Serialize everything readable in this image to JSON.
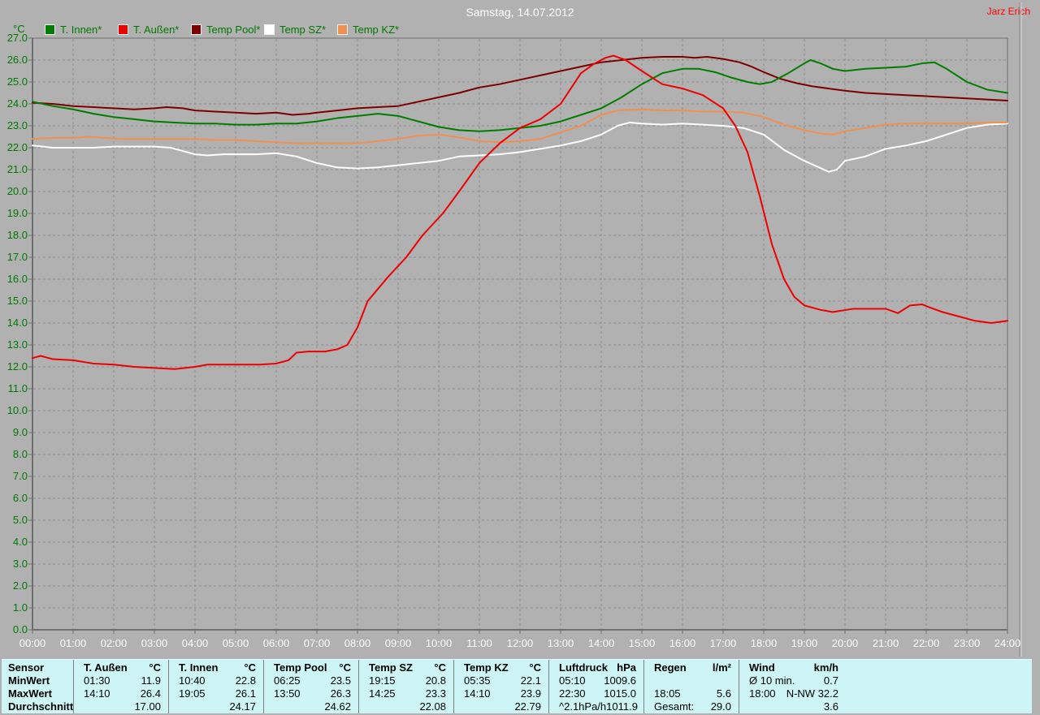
{
  "window": {
    "author": "Jarz Erich"
  },
  "chart_data": {
    "type": "line",
    "title": "Samstag, 14.07.2012",
    "y_unit": "°C",
    "xlabel": "",
    "ylabel": "°C",
    "ylim": [
      0,
      27
    ],
    "grid": true,
    "legend_position": "top-left",
    "y_ticks": [
      "0.0",
      "1.0",
      "2.0",
      "3.0",
      "4.0",
      "5.0",
      "6.0",
      "7.0",
      "8.0",
      "9.0",
      "10.0",
      "11.0",
      "12.0",
      "13.0",
      "14.0",
      "15.0",
      "16.0",
      "17.0",
      "18.0",
      "19.0",
      "20.0",
      "21.0",
      "22.0",
      "23.0",
      "24.0",
      "25.0",
      "26.0",
      "27.0"
    ],
    "x_ticks": [
      "00:00",
      "01:00",
      "02:00",
      "03:00",
      "04:00",
      "05:00",
      "06:00",
      "07:00",
      "08:00",
      "09:00",
      "10:00",
      "11:00",
      "12:00",
      "13:00",
      "14:00",
      "15:00",
      "16:00",
      "17:00",
      "18:00",
      "19:00",
      "20:00",
      "21:00",
      "22:00",
      "23:00",
      "24:00"
    ],
    "series": [
      {
        "name": "T. Innen*",
        "color": "#007d00",
        "points": [
          [
            0,
            24.1
          ],
          [
            0.5,
            23.9
          ],
          [
            1,
            23.75
          ],
          [
            1.5,
            23.55
          ],
          [
            2,
            23.4
          ],
          [
            2.5,
            23.3
          ],
          [
            3,
            23.2
          ],
          [
            3.5,
            23.15
          ],
          [
            4,
            23.1
          ],
          [
            4.5,
            23.1
          ],
          [
            5,
            23.05
          ],
          [
            5.5,
            23.05
          ],
          [
            6,
            23.1
          ],
          [
            6.5,
            23.1
          ],
          [
            7,
            23.2
          ],
          [
            7.5,
            23.35
          ],
          [
            8,
            23.45
          ],
          [
            8.5,
            23.55
          ],
          [
            9,
            23.45
          ],
          [
            9.5,
            23.2
          ],
          [
            10,
            22.95
          ],
          [
            10.5,
            22.8
          ],
          [
            11,
            22.75
          ],
          [
            11.5,
            22.8
          ],
          [
            12,
            22.9
          ],
          [
            12.5,
            23.0
          ],
          [
            13,
            23.2
          ],
          [
            13.5,
            23.5
          ],
          [
            14,
            23.8
          ],
          [
            14.5,
            24.3
          ],
          [
            15,
            24.9
          ],
          [
            15.5,
            25.4
          ],
          [
            16,
            25.6
          ],
          [
            16.4,
            25.6
          ],
          [
            16.8,
            25.45
          ],
          [
            17.2,
            25.2
          ],
          [
            17.6,
            25.0
          ],
          [
            17.9,
            24.9
          ],
          [
            18.2,
            25.0
          ],
          [
            18.6,
            25.4
          ],
          [
            19,
            25.85
          ],
          [
            19.15,
            26.0
          ],
          [
            19.4,
            25.85
          ],
          [
            19.7,
            25.6
          ],
          [
            20,
            25.5
          ],
          [
            20.5,
            25.6
          ],
          [
            21,
            25.65
          ],
          [
            21.5,
            25.7
          ],
          [
            21.9,
            25.85
          ],
          [
            22.2,
            25.9
          ],
          [
            22.5,
            25.6
          ],
          [
            23,
            25.0
          ],
          [
            23.5,
            24.65
          ],
          [
            24,
            24.5
          ]
        ]
      },
      {
        "name": "T. Außen*",
        "color": "#ee0000",
        "points": [
          [
            0,
            12.4
          ],
          [
            0.2,
            12.5
          ],
          [
            0.5,
            12.35
          ],
          [
            1,
            12.3
          ],
          [
            1.5,
            12.15
          ],
          [
            2,
            12.1
          ],
          [
            2.5,
            12.0
          ],
          [
            3,
            11.95
          ],
          [
            3.5,
            11.9
          ],
          [
            4,
            12.0
          ],
          [
            4.3,
            12.1
          ],
          [
            5,
            12.1
          ],
          [
            5.6,
            12.1
          ],
          [
            6,
            12.15
          ],
          [
            6.3,
            12.3
          ],
          [
            6.5,
            12.65
          ],
          [
            6.8,
            12.7
          ],
          [
            7.2,
            12.7
          ],
          [
            7.5,
            12.8
          ],
          [
            7.75,
            13.0
          ],
          [
            8,
            13.8
          ],
          [
            8.25,
            15.0
          ],
          [
            8.75,
            16.1
          ],
          [
            9.2,
            17.0
          ],
          [
            9.6,
            18.0
          ],
          [
            10.1,
            19.0
          ],
          [
            10.5,
            20.0
          ],
          [
            11,
            21.3
          ],
          [
            11.5,
            22.2
          ],
          [
            12,
            22.9
          ],
          [
            12.5,
            23.3
          ],
          [
            13,
            24.0
          ],
          [
            13.5,
            25.4
          ],
          [
            13.8,
            25.8
          ],
          [
            14.1,
            26.1
          ],
          [
            14.3,
            26.2
          ],
          [
            14.6,
            26.0
          ],
          [
            15,
            25.5
          ],
          [
            15.5,
            24.9
          ],
          [
            16,
            24.7
          ],
          [
            16.5,
            24.4
          ],
          [
            17,
            23.8
          ],
          [
            17.3,
            23.0
          ],
          [
            17.6,
            21.8
          ],
          [
            17.9,
            19.8
          ],
          [
            18.2,
            17.6
          ],
          [
            18.5,
            16.0
          ],
          [
            18.75,
            15.2
          ],
          [
            19,
            14.8
          ],
          [
            19.4,
            14.6
          ],
          [
            19.7,
            14.5
          ],
          [
            20.2,
            14.65
          ],
          [
            21,
            14.65
          ],
          [
            21.3,
            14.45
          ],
          [
            21.6,
            14.8
          ],
          [
            21.9,
            14.85
          ],
          [
            22.1,
            14.7
          ],
          [
            22.4,
            14.5
          ],
          [
            22.8,
            14.3
          ],
          [
            23.2,
            14.1
          ],
          [
            23.6,
            14.0
          ],
          [
            24,
            14.1
          ]
        ]
      },
      {
        "name": "Temp Pool*",
        "color": "#7d0000",
        "points": [
          [
            0,
            24.05
          ],
          [
            0.5,
            24.0
          ],
          [
            1,
            23.9
          ],
          [
            1.5,
            23.85
          ],
          [
            2,
            23.8
          ],
          [
            2.5,
            23.75
          ],
          [
            3,
            23.8
          ],
          [
            3.3,
            23.85
          ],
          [
            3.7,
            23.8
          ],
          [
            4,
            23.7
          ],
          [
            4.5,
            23.65
          ],
          [
            5,
            23.6
          ],
          [
            5.5,
            23.55
          ],
          [
            6,
            23.6
          ],
          [
            6.4,
            23.5
          ],
          [
            6.8,
            23.55
          ],
          [
            7,
            23.6
          ],
          [
            7.5,
            23.7
          ],
          [
            8,
            23.8
          ],
          [
            8.5,
            23.85
          ],
          [
            9,
            23.9
          ],
          [
            9.5,
            24.1
          ],
          [
            10,
            24.3
          ],
          [
            10.5,
            24.5
          ],
          [
            11,
            24.75
          ],
          [
            11.5,
            24.9
          ],
          [
            12,
            25.1
          ],
          [
            12.5,
            25.3
          ],
          [
            13,
            25.5
          ],
          [
            13.5,
            25.7
          ],
          [
            14,
            25.9
          ],
          [
            14.5,
            26.0
          ],
          [
            15,
            26.1
          ],
          [
            15.5,
            26.15
          ],
          [
            16,
            26.15
          ],
          [
            16.3,
            26.1
          ],
          [
            16.6,
            26.15
          ],
          [
            17,
            26.05
          ],
          [
            17.4,
            25.9
          ],
          [
            17.7,
            25.7
          ],
          [
            18,
            25.45
          ],
          [
            18.4,
            25.15
          ],
          [
            18.8,
            24.95
          ],
          [
            19.2,
            24.8
          ],
          [
            19.6,
            24.7
          ],
          [
            20,
            24.6
          ],
          [
            20.5,
            24.5
          ],
          [
            21,
            24.45
          ],
          [
            21.5,
            24.4
          ],
          [
            22,
            24.35
          ],
          [
            22.5,
            24.3
          ],
          [
            23,
            24.25
          ],
          [
            23.5,
            24.2
          ],
          [
            24,
            24.15
          ]
        ]
      },
      {
        "name": "Temp SZ*",
        "color": "#ffffff",
        "points": [
          [
            0,
            22.1
          ],
          [
            0.5,
            22.0
          ],
          [
            1,
            22.0
          ],
          [
            1.5,
            22.0
          ],
          [
            2,
            22.05
          ],
          [
            2.5,
            22.05
          ],
          [
            3,
            22.05
          ],
          [
            3.4,
            22.0
          ],
          [
            3.7,
            21.85
          ],
          [
            4,
            21.7
          ],
          [
            4.3,
            21.65
          ],
          [
            4.7,
            21.7
          ],
          [
            5,
            21.7
          ],
          [
            5.5,
            21.7
          ],
          [
            6,
            21.75
          ],
          [
            6.5,
            21.6
          ],
          [
            7,
            21.3
          ],
          [
            7.5,
            21.1
          ],
          [
            8,
            21.05
          ],
          [
            8.5,
            21.1
          ],
          [
            9,
            21.2
          ],
          [
            9.5,
            21.3
          ],
          [
            10,
            21.4
          ],
          [
            10.5,
            21.6
          ],
          [
            11,
            21.65
          ],
          [
            11.5,
            21.7
          ],
          [
            12,
            21.8
          ],
          [
            12.5,
            21.95
          ],
          [
            13,
            22.1
          ],
          [
            13.5,
            22.3
          ],
          [
            14,
            22.6
          ],
          [
            14.4,
            23.0
          ],
          [
            14.7,
            23.15
          ],
          [
            15,
            23.1
          ],
          [
            15.5,
            23.05
          ],
          [
            16,
            23.1
          ],
          [
            16.5,
            23.05
          ],
          [
            17,
            23.0
          ],
          [
            17.5,
            22.9
          ],
          [
            18,
            22.6
          ],
          [
            18.5,
            21.9
          ],
          [
            19,
            21.4
          ],
          [
            19.3,
            21.15
          ],
          [
            19.6,
            20.9
          ],
          [
            19.8,
            21.0
          ],
          [
            20,
            21.4
          ],
          [
            20.5,
            21.6
          ],
          [
            21,
            21.95
          ],
          [
            21.5,
            22.1
          ],
          [
            22,
            22.3
          ],
          [
            22.5,
            22.6
          ],
          [
            23,
            22.9
          ],
          [
            23.5,
            23.05
          ],
          [
            24,
            23.1
          ]
        ]
      },
      {
        "name": "Temp KZ*",
        "color": "#f09050",
        "points": [
          [
            0,
            22.4
          ],
          [
            0.5,
            22.45
          ],
          [
            1,
            22.45
          ],
          [
            1.4,
            22.5
          ],
          [
            1.8,
            22.45
          ],
          [
            2.2,
            22.4
          ],
          [
            3,
            22.4
          ],
          [
            4,
            22.4
          ],
          [
            4.5,
            22.35
          ],
          [
            5,
            22.35
          ],
          [
            5.5,
            22.3
          ],
          [
            6,
            22.25
          ],
          [
            6.5,
            22.2
          ],
          [
            7,
            22.2
          ],
          [
            8,
            22.2
          ],
          [
            8.5,
            22.3
          ],
          [
            9,
            22.4
          ],
          [
            9.5,
            22.55
          ],
          [
            10,
            22.6
          ],
          [
            10.4,
            22.5
          ],
          [
            11,
            22.3
          ],
          [
            11.5,
            22.25
          ],
          [
            12,
            22.3
          ],
          [
            12.5,
            22.4
          ],
          [
            13,
            22.7
          ],
          [
            13.5,
            23.0
          ],
          [
            14,
            23.5
          ],
          [
            14.4,
            23.7
          ],
          [
            15,
            23.75
          ],
          [
            15.5,
            23.7
          ],
          [
            16,
            23.7
          ],
          [
            16.5,
            23.65
          ],
          [
            17,
            23.65
          ],
          [
            17.5,
            23.6
          ],
          [
            18,
            23.4
          ],
          [
            18.5,
            23.05
          ],
          [
            19,
            22.8
          ],
          [
            19.4,
            22.65
          ],
          [
            19.7,
            22.6
          ],
          [
            20,
            22.75
          ],
          [
            20.5,
            22.9
          ],
          [
            21,
            23.05
          ],
          [
            21.5,
            23.1
          ],
          [
            22,
            23.1
          ],
          [
            23,
            23.1
          ],
          [
            23.5,
            23.15
          ],
          [
            24,
            23.15
          ]
        ]
      }
    ]
  },
  "stats_table": {
    "label_column": {
      "header": "Sensor",
      "rows": [
        "MinWert",
        "MaxWert",
        "Durchschnitt"
      ]
    },
    "columns": [
      {
        "name": "T. Außen",
        "unit": "°C",
        "min_time": "01:30",
        "min_value": "11.9",
        "max_time": "14:10",
        "max_value": "26.4",
        "avg_label": "",
        "avg_value": "17.00"
      },
      {
        "name": "T. Innen",
        "unit": "°C",
        "min_time": "10:40",
        "min_value": "22.8",
        "max_time": "19:05",
        "max_value": "26.1",
        "avg_label": "",
        "avg_value": "24.17"
      },
      {
        "name": "Temp Pool",
        "unit": "°C",
        "min_time": "06:25",
        "min_value": "23.5",
        "max_time": "13:50",
        "max_value": "26.3",
        "avg_label": "",
        "avg_value": "24.62"
      },
      {
        "name": "Temp SZ",
        "unit": "°C",
        "min_time": "19:15",
        "min_value": "20.8",
        "max_time": "14:25",
        "max_value": "23.3",
        "avg_label": "",
        "avg_value": "22.08"
      },
      {
        "name": "Temp KZ",
        "unit": "°C",
        "min_time": "05:35",
        "min_value": "22.1",
        "max_time": "14:10",
        "max_value": "23.9",
        "avg_label": "",
        "avg_value": "22.79"
      },
      {
        "name": "Luftdruck",
        "unit": "hPa",
        "min_time": "05:10",
        "min_value": "1009.6",
        "max_time": "22:30",
        "max_value": "1015.0",
        "avg_label": "^2.1hPa/h",
        "avg_value": "1011.9"
      },
      {
        "name": "Regen",
        "unit": "l/m²",
        "min_time": "",
        "min_value": "",
        "max_time": "18:05",
        "max_value": "5.6",
        "avg_label": "Gesamt:",
        "avg_value": "29.0"
      },
      {
        "name": "Wind",
        "unit": "km/h",
        "min_time": "Ø 10 min.",
        "min_value": "0.7",
        "max_time": "18:00",
        "max_value": "N-NW 32.2",
        "avg_label": "",
        "avg_value": "3.6"
      }
    ]
  },
  "colors": {
    "background": "#b1b1b1",
    "grid": "#8d8d8d",
    "axis": "#6f6f6f",
    "axis_text_y": "#007800",
    "axis_text_x": "#ffffff",
    "title_text": "#ffffff",
    "author_text": "#ff0000",
    "table_background": "#cdf5f5"
  }
}
